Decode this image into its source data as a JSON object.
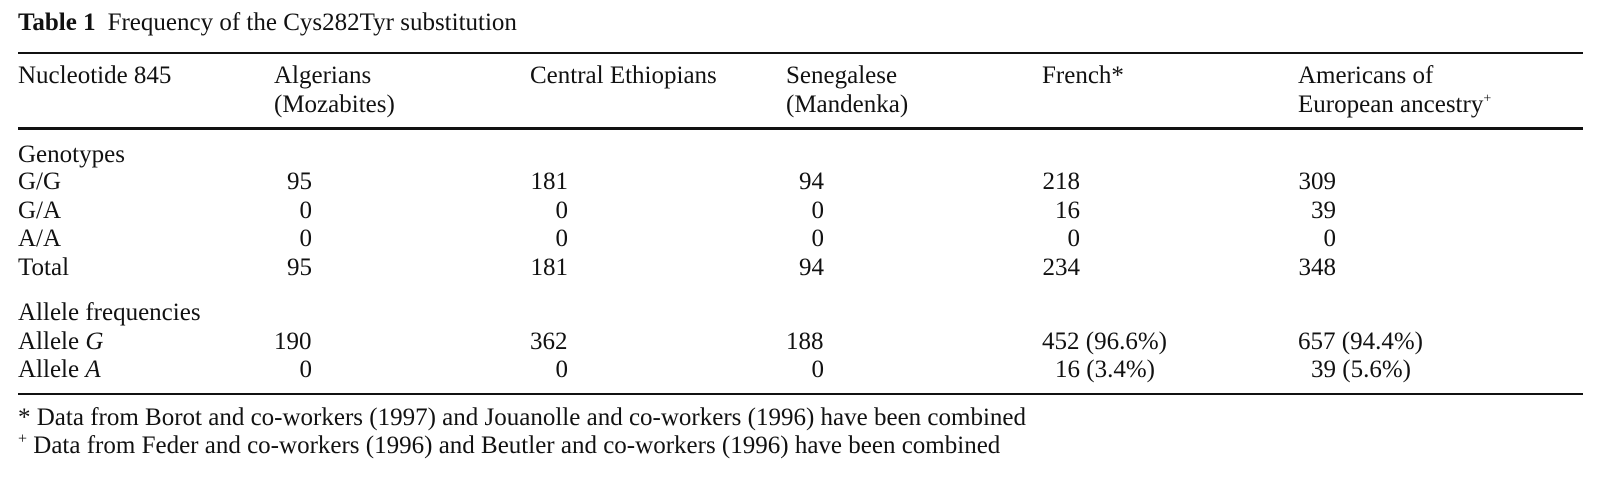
{
  "table": {
    "label": "Table 1",
    "caption": "Frequency of the Cys282Tyr substitution",
    "columns": [
      {
        "line1": "Nucleotide 845",
        "line2": ""
      },
      {
        "line1": "Algerians",
        "line2": "(Mozabites)"
      },
      {
        "line1": "Central Ethiopians",
        "line2": ""
      },
      {
        "line1": "Senegalese",
        "line2": "(Mandenka)"
      },
      {
        "line1": "French*",
        "line2": ""
      },
      {
        "line1": "Americans of",
        "line2": "European ancestry",
        "marker": "+"
      }
    ],
    "sections": [
      {
        "heading": "Genotypes",
        "rows": [
          {
            "label": "G/G",
            "values": [
              "95",
              "181",
              "94",
              "218",
              "309"
            ]
          },
          {
            "label": "G/A",
            "values": [
              "0",
              "0",
              "0",
              "16",
              "39"
            ]
          },
          {
            "label": "A/A",
            "values": [
              "0",
              "0",
              "0",
              "0",
              "0"
            ]
          },
          {
            "label": "Total",
            "values": [
              "95",
              "181",
              "94",
              "234",
              "348"
            ]
          }
        ]
      },
      {
        "heading": "Allele frequencies",
        "rows": [
          {
            "label_prefix": "Allele",
            "label_italic": "G",
            "values": [
              "190",
              "362",
              "188",
              "452 (96.6%)",
              "657 (94.4%)"
            ]
          },
          {
            "label_prefix": "Allele",
            "label_italic": "A",
            "values": [
              "0",
              "0",
              "0",
              "16 (3.4%)",
              "39 (5.6%)"
            ]
          }
        ]
      }
    ],
    "footnotes": [
      {
        "mark": "*",
        "text": "Data from Borot and co-workers (1997) and Jouanolle and co-workers (1996) have been combined"
      },
      {
        "mark": "+",
        "text": "Data from Feder and co-workers (1996) and Beutler and co-workers (1996) have been combined"
      }
    ]
  }
}
